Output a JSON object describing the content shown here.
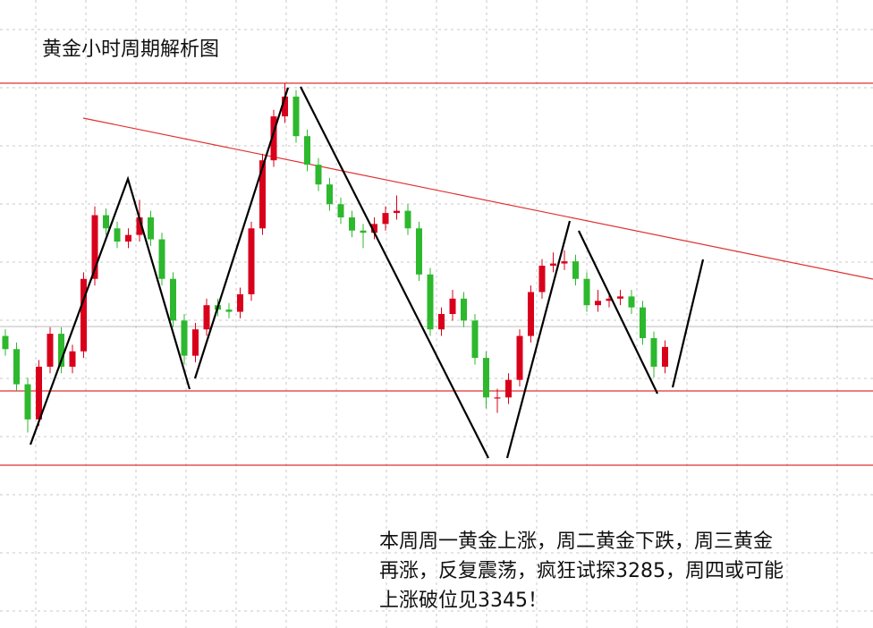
{
  "chart_data": {
    "type": "candlestick",
    "title": "黄金小时周期解析图",
    "annotation": [
      "本周周一黄金上涨，周二黄金下跌，周三黄金",
      "再涨，反复震荡，疯狂试探3285，周四或可能",
      "上涨破位见3345！"
    ],
    "ylim": [
      3177,
      3463
    ],
    "up_color": "#d9001b",
    "down_color": "#2db82d",
    "ohlc": [
      [
        3310,
        3313,
        3301,
        3304
      ],
      [
        3304,
        3307,
        3285,
        3288
      ],
      [
        3288,
        3291,
        3266,
        3272
      ],
      [
        3272,
        3299,
        3269,
        3296
      ],
      [
        3296,
        3314,
        3293,
        3311
      ],
      [
        3311,
        3314,
        3293,
        3296
      ],
      [
        3296,
        3306,
        3293,
        3303
      ],
      [
        3303,
        3339,
        3300,
        3336
      ],
      [
        3336,
        3369,
        3333,
        3365
      ],
      [
        3365,
        3368,
        3356,
        3359
      ],
      [
        3359,
        3362,
        3350,
        3353
      ],
      [
        3353,
        3359,
        3350,
        3356
      ],
      [
        3356,
        3372,
        3353,
        3364
      ],
      [
        3364,
        3367,
        3351,
        3354
      ],
      [
        3354,
        3357,
        3333,
        3336
      ],
      [
        3336,
        3339,
        3314,
        3317
      ],
      [
        3317,
        3320,
        3297,
        3301
      ],
      [
        3301,
        3316,
        3298,
        3313
      ],
      [
        3313,
        3327,
        3310,
        3324
      ],
      [
        3324,
        3327,
        3319,
        3322
      ],
      [
        3322,
        3325,
        3318,
        3321
      ],
      [
        3321,
        3332,
        3318,
        3329
      ],
      [
        3329,
        3362,
        3326,
        3359
      ],
      [
        3359,
        3393,
        3356,
        3390
      ],
      [
        3390,
        3413,
        3387,
        3410
      ],
      [
        3410,
        3425,
        3407,
        3419
      ],
      [
        3419,
        3422,
        3398,
        3401
      ],
      [
        3401,
        3404,
        3385,
        3388
      ],
      [
        3388,
        3391,
        3376,
        3379
      ],
      [
        3379,
        3382,
        3367,
        3370
      ],
      [
        3370,
        3373,
        3361,
        3364
      ],
      [
        3364,
        3367,
        3355,
        3358
      ],
      [
        3358,
        3361,
        3350,
        3357
      ],
      [
        3357,
        3364,
        3354,
        3361
      ],
      [
        3361,
        3369,
        3358,
        3366
      ],
      [
        3366,
        3374,
        3363,
        3367
      ],
      [
        3367,
        3370,
        3356,
        3359
      ],
      [
        3359,
        3362,
        3335,
        3338
      ],
      [
        3338,
        3341,
        3310,
        3313
      ],
      [
        3313,
        3323,
        3310,
        3320
      ],
      [
        3320,
        3331,
        3317,
        3327
      ],
      [
        3327,
        3330,
        3314,
        3317
      ],
      [
        3317,
        3320,
        3297,
        3300
      ],
      [
        3300,
        3303,
        3277,
        3282
      ],
      [
        3282,
        3286,
        3275,
        3282
      ],
      [
        3282,
        3293,
        3279,
        3290
      ],
      [
        3290,
        3313,
        3287,
        3310
      ],
      [
        3310,
        3333,
        3307,
        3330
      ],
      [
        3330,
        3345,
        3327,
        3342
      ],
      [
        3342,
        3348,
        3339,
        3343
      ],
      [
        3343,
        3349,
        3340,
        3344
      ],
      [
        3344,
        3347,
        3333,
        3336
      ],
      [
        3336,
        3339,
        3321,
        3324
      ],
      [
        3324,
        3331,
        3321,
        3326
      ],
      [
        3326,
        3330,
        3323,
        3327
      ],
      [
        3327,
        3331,
        3324,
        3328
      ],
      [
        3328,
        3331,
        3320,
        3323
      ],
      [
        3323,
        3326,
        3306,
        3309
      ],
      [
        3309,
        3312,
        3291,
        3296
      ],
      [
        3296,
        3308,
        3293,
        3305
      ]
    ]
  }
}
